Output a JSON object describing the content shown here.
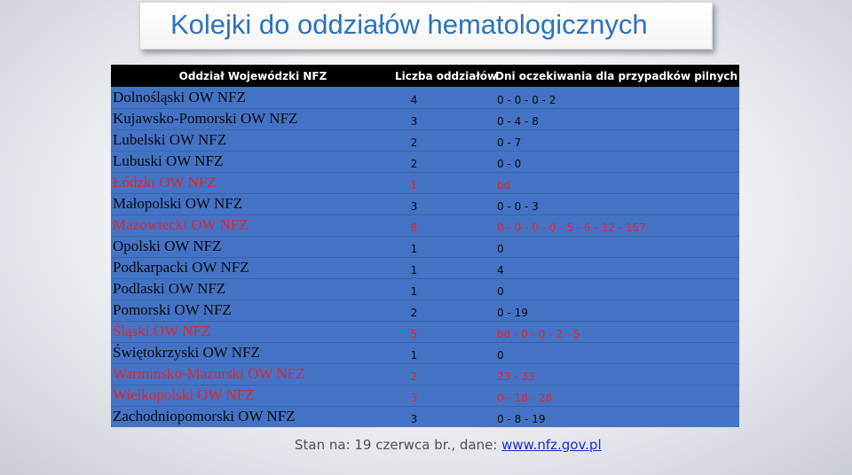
{
  "title": "Kolejki do oddziałów hematologicznych",
  "table": {
    "headers": {
      "department": "Oddział Wojewódzki NFZ",
      "count": "Liczba oddziałów",
      "days": "Dni oczekiwania dla przypadków pilnych"
    },
    "rows": [
      {
        "department": "Dolnośląski OW NFZ",
        "count": "4",
        "days": "0 - 0 - 0 - 2",
        "highlight": false
      },
      {
        "department": "Kujawsko-Pomorski OW NFZ",
        "count": "3",
        "days": "0 - 4 - 8",
        "highlight": false
      },
      {
        "department": "Lubelski OW NFZ",
        "count": "2",
        "days": "0 - 7",
        "highlight": false
      },
      {
        "department": "Lubuski OW NFZ",
        "count": "2",
        "days": "0 - 0",
        "highlight": false
      },
      {
        "department": "Łódzki OW NFZ",
        "count": "1",
        "days": "bd",
        "highlight": true
      },
      {
        "department": "Małopolski OW NFZ",
        "count": "3",
        "days": "0 - 0 - 3",
        "highlight": false
      },
      {
        "department": "Mazowiecki OW NFZ",
        "count": "8",
        "days": "0 - 0 - 0 - 0 - 5 - 6 - 12 - 157",
        "highlight": true
      },
      {
        "department": "Opolski OW NFZ",
        "count": "1",
        "days": "0",
        "highlight": false
      },
      {
        "department": "Podkarpacki OW NFZ",
        "count": "1",
        "days": "4",
        "highlight": false
      },
      {
        "department": "Podlaski OW NFZ",
        "count": "1",
        "days": "0",
        "highlight": false
      },
      {
        "department": "Pomorski OW NFZ",
        "count": "2",
        "days": "0 - 19",
        "highlight": false
      },
      {
        "department": "Śląski OW NFZ",
        "count": "5",
        "days": "bd - 0 - 0 - 2 - 5",
        "highlight": true
      },
      {
        "department": "Świętokrzyski OW NFZ",
        "count": "1",
        "days": "0",
        "highlight": false
      },
      {
        "department": "Warmińsko-Mazurski OW NFZ",
        "count": "2",
        "days": "23 - 33",
        "highlight": true
      },
      {
        "department": "Wielkopolski OW NFZ",
        "count": "3",
        "days": "0 - 18 - 28",
        "highlight": true
      },
      {
        "department": "Zachodniopomorski OW NFZ",
        "count": "3",
        "days": "0 - 8 - 19",
        "highlight": false
      }
    ]
  },
  "footer": {
    "text": "Stan na: 19 czerwca br., dane: ",
    "link": "www.nfz.gov.pl"
  },
  "colors": {
    "title": "#2e73b8",
    "row_background": "#4473c5",
    "header_background": "#000000",
    "highlight_text": "#e0262a",
    "link": "#1a2ec8"
  }
}
